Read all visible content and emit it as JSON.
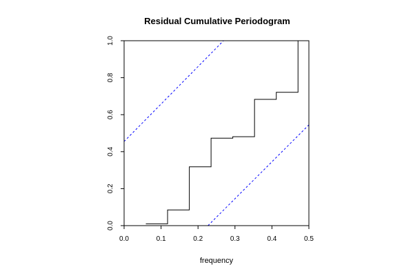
{
  "chart_data": {
    "type": "line",
    "title": "Residual Cumulative Periodogram",
    "xlabel": "frequency",
    "ylabel": "",
    "xlim": [
      0,
      0.5
    ],
    "ylim": [
      0,
      1
    ],
    "x_ticks": [
      "0.0",
      "0.1",
      "0.2",
      "0.3",
      "0.4",
      "0.5"
    ],
    "y_ticks": [
      "0.0",
      "0.2",
      "0.4",
      "0.6",
      "0.8",
      "1.0"
    ],
    "grid": false,
    "legend": "none",
    "series": [
      {
        "style": "step",
        "color": "#000000",
        "x": [
          0.0588,
          0.1176,
          0.1765,
          0.2353,
          0.2941,
          0.3529,
          0.4118,
          0.4706
        ],
        "y": [
          0.01,
          0.085,
          0.318,
          0.473,
          0.481,
          0.683,
          0.721,
          1.0
        ]
      },
      {
        "style": "dashed",
        "color": "#0000ff",
        "x": [
          0,
          0.269
        ],
        "y": [
          0.455,
          1.0
        ]
      },
      {
        "style": "dashed",
        "color": "#0000ff",
        "x": [
          0.227,
          0.5
        ],
        "y": [
          0,
          0.545
        ]
      }
    ]
  }
}
